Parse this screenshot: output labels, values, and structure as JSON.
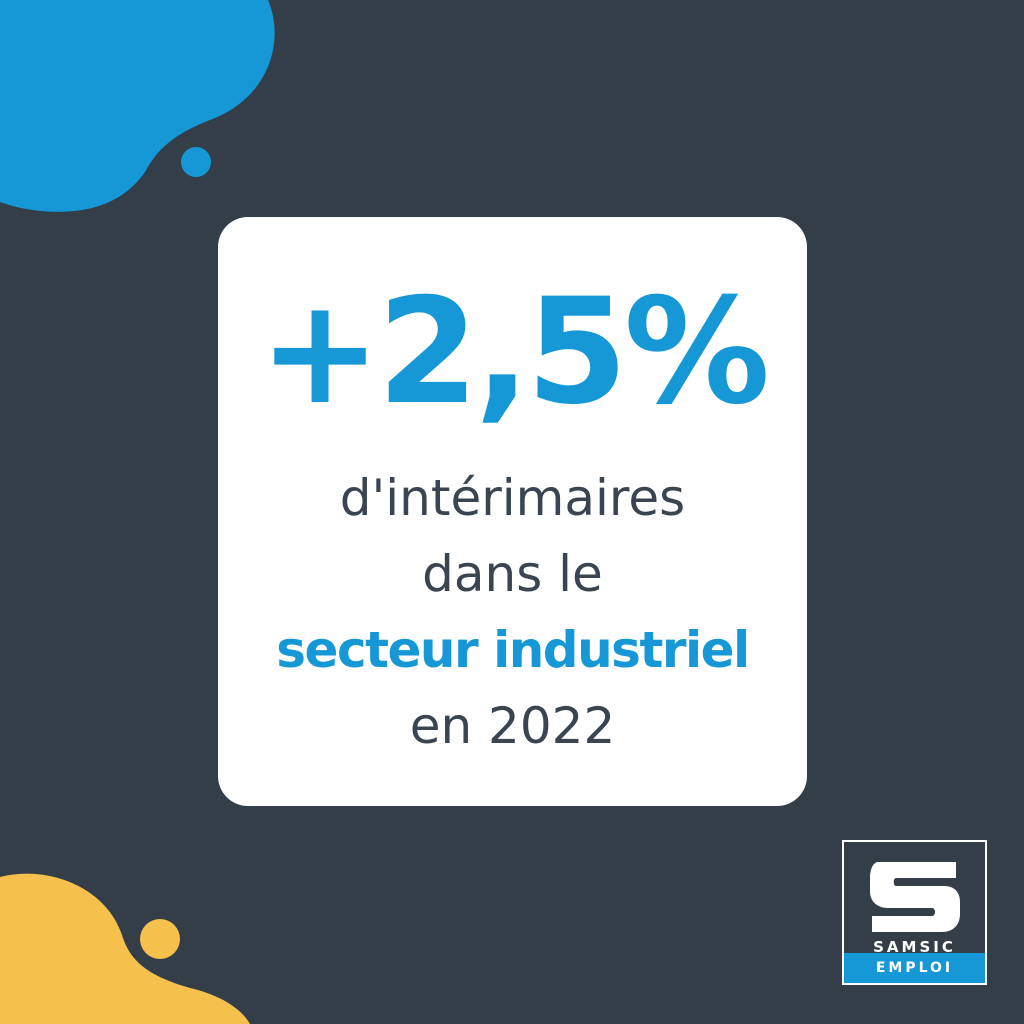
{
  "colors": {
    "background": "#333e49",
    "accent_blue": "#1598d5",
    "accent_yellow": "#f6c04d",
    "card": "#ffffff",
    "text_dark": "#3a4551"
  },
  "decorations": {
    "top_left": "blue-blob-shape",
    "bottom_left": "yellow-blob-shape"
  },
  "card": {
    "stat": "+2,5%",
    "line1": "d'intérimaires",
    "line2": "dans le",
    "line3": "secteur industriel",
    "line4": "en 2022"
  },
  "logo": {
    "icon": "samsic-s-logo-icon",
    "brand": "SAMSIC",
    "sub": "EMPLOI"
  }
}
